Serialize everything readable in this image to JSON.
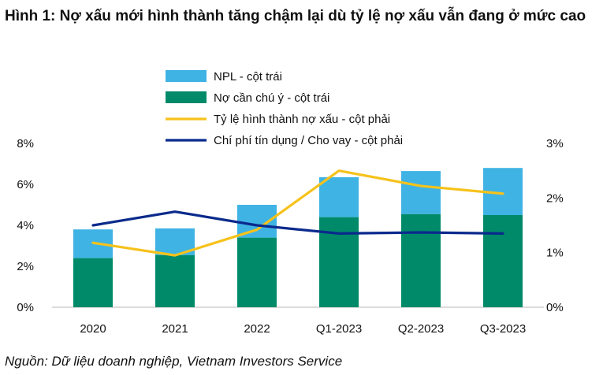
{
  "title": "Hình 1: Nợ xấu mới hình thành tăng chậm lại dù tỷ lệ nợ xấu vẫn đang ở mức cao",
  "source": "Nguồn: Dữ liệu doanh nghiệp, Vietnam Investors Service",
  "colors": {
    "npl": "#3fb3e4",
    "special_mention": "#008a6a",
    "formation_rate": "#f6c21b",
    "credit_cost": "#0a2a8c",
    "axis": "#d0d0d0"
  },
  "chart_data": {
    "type": "bar",
    "stacked": true,
    "categories": [
      "2020",
      "2021",
      "2022",
      "Q1-2023",
      "Q2-2023",
      "Q3-2023"
    ],
    "left_axis": {
      "ylim": [
        0,
        8
      ],
      "ticks": [
        "0%",
        "2%",
        "4%",
        "6%",
        "8%"
      ],
      "tick_values": [
        0,
        2,
        4,
        6,
        8
      ]
    },
    "right_axis": {
      "ylim": [
        0,
        3
      ],
      "ticks": [
        "0%",
        "1%",
        "2%",
        "3%"
      ],
      "tick_values": [
        0,
        1,
        2,
        3
      ]
    },
    "series": [
      {
        "name": "Nợ cần chú ý - cột trái",
        "kind": "bar",
        "axis": "left",
        "color_key": "special_mention",
        "values": [
          2.4,
          2.55,
          3.4,
          4.4,
          4.55,
          4.5
        ]
      },
      {
        "name": "NPL - cột trái",
        "kind": "bar",
        "axis": "left",
        "color_key": "npl",
        "values": [
          1.4,
          1.3,
          1.6,
          1.95,
          2.1,
          2.3
        ]
      },
      {
        "name": "Tỷ lệ hình thành nợ xấu - cột phải",
        "kind": "line",
        "axis": "right",
        "color_key": "formation_rate",
        "values": [
          1.18,
          0.95,
          1.42,
          2.5,
          2.22,
          2.08
        ]
      },
      {
        "name": "Chí phí tín dụng / Cho vay - cột phải",
        "kind": "line",
        "axis": "right",
        "color_key": "credit_cost",
        "values": [
          1.5,
          1.75,
          1.5,
          1.35,
          1.37,
          1.35
        ]
      }
    ],
    "legend": [
      {
        "label": "NPL - cột trái",
        "kind": "bar",
        "color_key": "npl"
      },
      {
        "label": "Nợ cần chú ý - cột trái",
        "kind": "bar",
        "color_key": "special_mention"
      },
      {
        "label": "Tỷ lệ hình thành nợ xấu - cột phải",
        "kind": "line",
        "color_key": "formation_rate"
      },
      {
        "label": "Chí phí tín dụng / Cho vay - cột phải",
        "kind": "line",
        "color_key": "credit_cost"
      }
    ],
    "legend_position": "top-center",
    "grid": false
  }
}
